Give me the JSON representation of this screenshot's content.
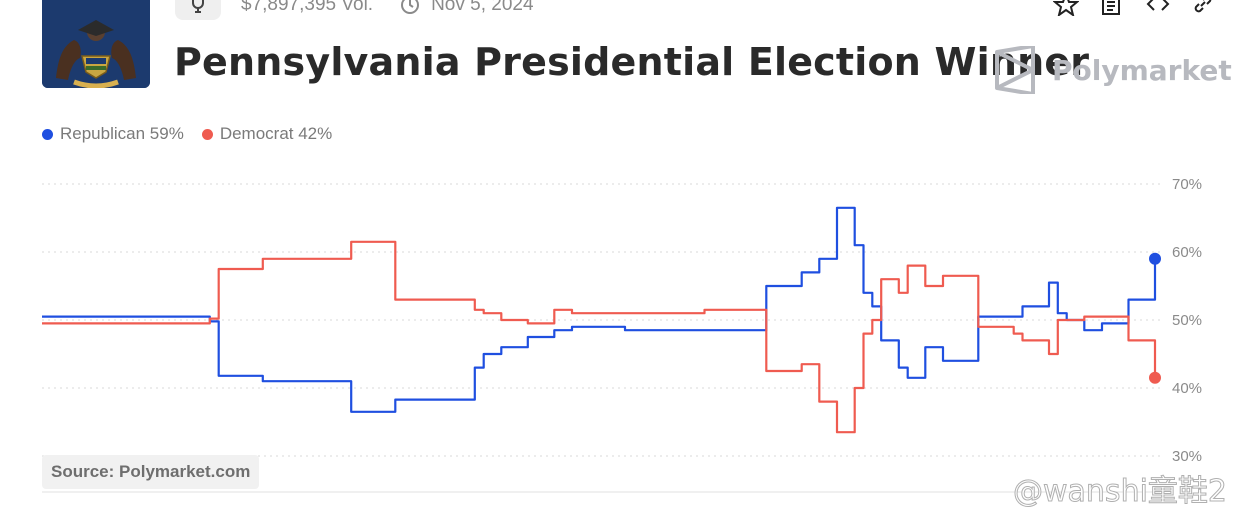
{
  "header": {
    "volume": "$7,897,395 Vol.",
    "date": "Nov 5, 2024",
    "title": "Pennsylvania Presidential Election Winner",
    "brand": "Polymarket",
    "icons": [
      "trophy-icon",
      "clock-icon",
      "star-icon",
      "document-icon",
      "code-icon",
      "link-icon"
    ]
  },
  "legend": [
    {
      "label": "Republican 59%",
      "color": "#1f4fe0"
    },
    {
      "label": "Democrat 42%",
      "color": "#ef5b50"
    }
  ],
  "source": "Source: Polymarket.com",
  "watermark": "@wanshi童鞋2",
  "chart_data": {
    "type": "line",
    "title": "Pennsylvania Presidential Election Winner",
    "xlabel": "",
    "ylabel": "",
    "ylim": [
      30,
      70
    ],
    "yticks": [
      "70%",
      "60%",
      "50%",
      "40%",
      "30%"
    ],
    "grid": true,
    "legend_position": "top-left",
    "x": [
      0,
      10,
      19,
      20,
      25,
      27,
      35,
      40,
      49,
      50,
      52,
      55,
      58,
      60,
      66,
      69,
      75,
      79,
      82,
      86,
      88,
      90,
      92,
      93,
      94,
      95,
      97,
      98,
      100,
      102,
      106,
      110,
      111,
      114,
      115,
      116,
      118,
      120,
      123,
      126
    ],
    "series": [
      {
        "name": "Republican",
        "color": "#1f4fe0",
        "values": [
          50.5,
          50.5,
          49.8,
          41.8,
          41,
          41,
          36.5,
          38.3,
          43,
          45,
          46,
          47.5,
          48.5,
          49,
          48.5,
          48.5,
          48.5,
          48.5,
          55,
          57,
          59,
          66.5,
          61,
          54,
          52,
          47,
          43,
          41.5,
          46,
          44,
          50.5,
          50.5,
          52,
          55.5,
          51,
          50,
          48.5,
          49.5,
          53,
          59
        ]
      },
      {
        "name": "Democrat",
        "color": "#ef5b50",
        "values": [
          49.5,
          49.5,
          50.2,
          57.5,
          59,
          59,
          61.5,
          53,
          51.5,
          51,
          50,
          49.5,
          51.5,
          51,
          51,
          51,
          51.5,
          51.5,
          42.5,
          43.5,
          38,
          33.5,
          40,
          48,
          50,
          56,
          54,
          58,
          55,
          56.5,
          49,
          48,
          47,
          45,
          50,
          50,
          50.5,
          50.5,
          47,
          41.5
        ]
      }
    ]
  }
}
